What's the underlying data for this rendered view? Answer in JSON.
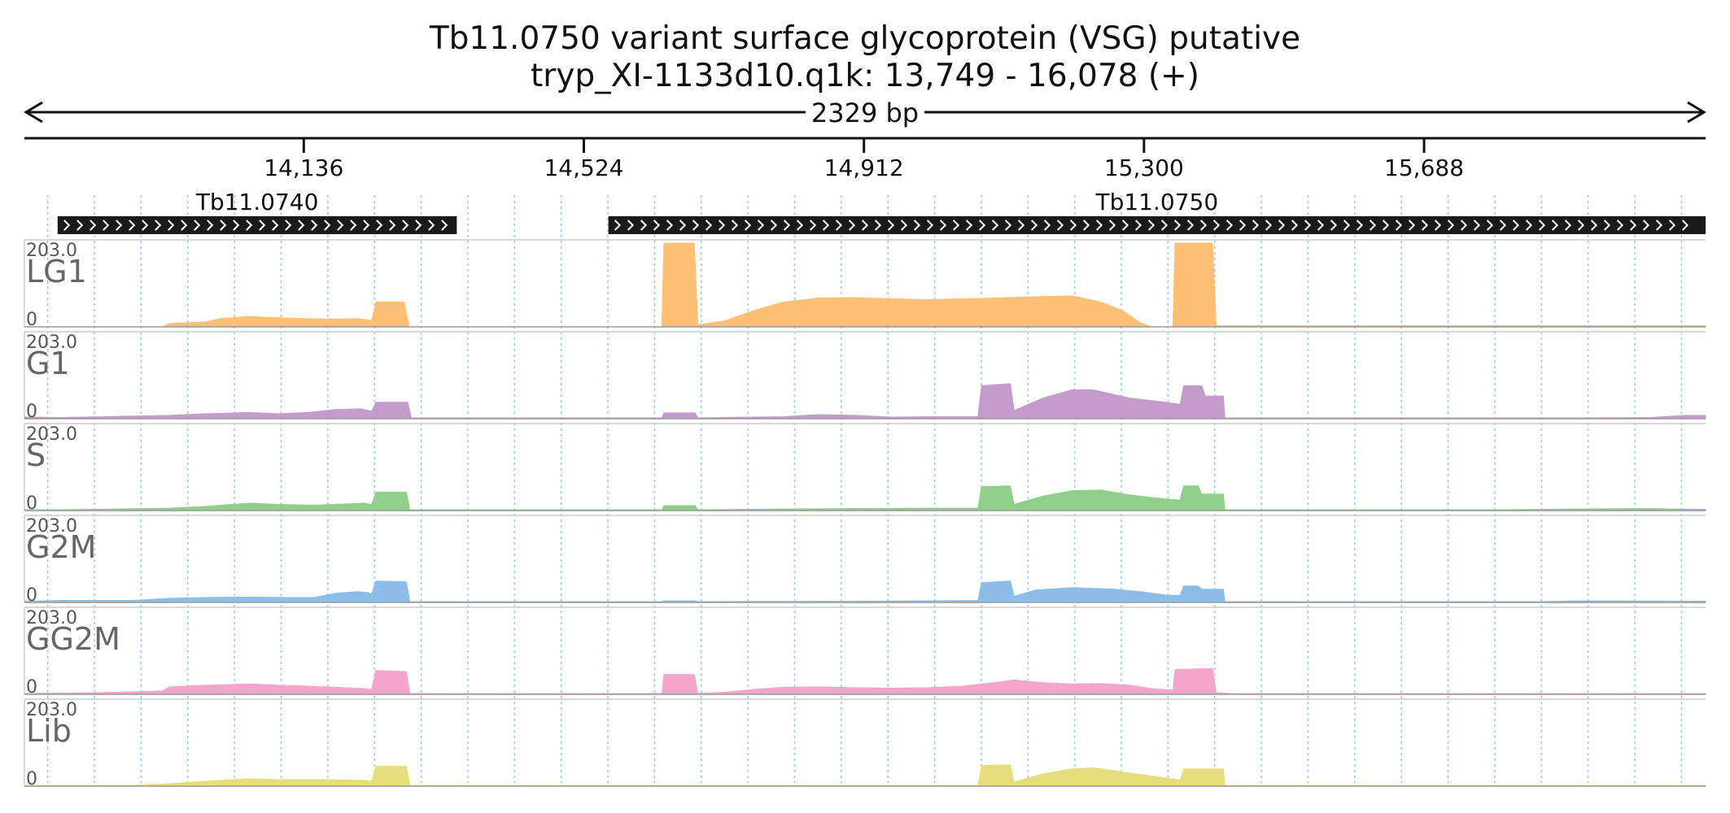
{
  "title": {
    "line1": "Tb11.0750  variant surface glycoprotein (VSG)  putative",
    "line2": "tryp_XI-1133d10.q1k: 13,749 - 16,078 (+)"
  },
  "span_label": "2329 bp",
  "chart_data": {
    "type": "area",
    "x_range": [
      13749,
      16078
    ],
    "x_ticks": [
      "14,136",
      "14,524",
      "14,912",
      "15,300",
      "15,688"
    ],
    "x_tick_values": [
      14136,
      14524,
      14912,
      15300,
      15688
    ],
    "grid": true,
    "genes": [
      {
        "name": "Tb11.0740",
        "start": 13795,
        "end": 14348,
        "strand": "+"
      },
      {
        "name": "Tb11.0750",
        "start": 14558,
        "end": 16078,
        "strand": "+"
      }
    ],
    "tracks": [
      {
        "name": "LG1",
        "ymax_label": "203.0",
        "ymin_label": "0",
        "ymax": 203,
        "color": "#fcbf74",
        "points": [
          [
            13749,
            0
          ],
          [
            13940,
            0
          ],
          [
            13950,
            8
          ],
          [
            14000,
            12
          ],
          [
            14020,
            20
          ],
          [
            14060,
            25
          ],
          [
            14100,
            22
          ],
          [
            14140,
            20
          ],
          [
            14180,
            19
          ],
          [
            14210,
            20
          ],
          [
            14230,
            16
          ],
          [
            14236,
            60
          ],
          [
            14275,
            60
          ],
          [
            14282,
            0
          ],
          [
            14632,
            0
          ],
          [
            14635,
            203
          ],
          [
            14677,
            203
          ],
          [
            14682,
            5
          ],
          [
            14720,
            15
          ],
          [
            14760,
            40
          ],
          [
            14800,
            60
          ],
          [
            14850,
            70
          ],
          [
            14900,
            71
          ],
          [
            14950,
            68
          ],
          [
            15000,
            66
          ],
          [
            15050,
            68
          ],
          [
            15100,
            70
          ],
          [
            15150,
            73
          ],
          [
            15200,
            75
          ],
          [
            15215,
            70
          ],
          [
            15240,
            60
          ],
          [
            15270,
            40
          ],
          [
            15295,
            10
          ],
          [
            15310,
            0
          ],
          [
            15340,
            0
          ],
          [
            15343,
            203
          ],
          [
            15395,
            203
          ],
          [
            15400,
            3
          ],
          [
            16078,
            3
          ]
        ]
      },
      {
        "name": "G1",
        "ymax_label": "203.0",
        "ymin_label": "0",
        "ymax": 203,
        "color": "#c49ccc",
        "points": [
          [
            13749,
            4
          ],
          [
            13800,
            3
          ],
          [
            13950,
            8
          ],
          [
            14000,
            12
          ],
          [
            14060,
            15
          ],
          [
            14100,
            12
          ],
          [
            14140,
            15
          ],
          [
            14180,
            22
          ],
          [
            14215,
            24
          ],
          [
            14230,
            18
          ],
          [
            14236,
            40
          ],
          [
            14280,
            40
          ],
          [
            14285,
            2
          ],
          [
            14632,
            2
          ],
          [
            14635,
            14
          ],
          [
            14678,
            14
          ],
          [
            14682,
            2
          ],
          [
            14800,
            5
          ],
          [
            14850,
            10
          ],
          [
            14900,
            8
          ],
          [
            14950,
            4
          ],
          [
            15000,
            5
          ],
          [
            15070,
            5
          ],
          [
            15075,
            80
          ],
          [
            15115,
            85
          ],
          [
            15120,
            20
          ],
          [
            15160,
            50
          ],
          [
            15200,
            70
          ],
          [
            15230,
            70
          ],
          [
            15280,
            50
          ],
          [
            15330,
            40
          ],
          [
            15350,
            35
          ],
          [
            15355,
            80
          ],
          [
            15380,
            80
          ],
          [
            15385,
            55
          ],
          [
            15410,
            55
          ],
          [
            15412,
            2
          ],
          [
            15900,
            2
          ],
          [
            16000,
            3
          ],
          [
            16050,
            8
          ],
          [
            16078,
            8
          ]
        ]
      },
      {
        "name": "S",
        "ymax_label": "203.0",
        "ymin_label": "0",
        "ymax": 203,
        "color": "#8fcf8a",
        "points": [
          [
            13749,
            2
          ],
          [
            13800,
            2
          ],
          [
            13950,
            6
          ],
          [
            14000,
            10
          ],
          [
            14060,
            18
          ],
          [
            14100,
            15
          ],
          [
            14150,
            13
          ],
          [
            14220,
            18
          ],
          [
            14230,
            15
          ],
          [
            14236,
            45
          ],
          [
            14278,
            45
          ],
          [
            14283,
            2
          ],
          [
            14632,
            2
          ],
          [
            14635,
            12
          ],
          [
            14678,
            12
          ],
          [
            14682,
            2
          ],
          [
            14800,
            4
          ],
          [
            14900,
            5
          ],
          [
            15000,
            6
          ],
          [
            15070,
            6
          ],
          [
            15075,
            58
          ],
          [
            15115,
            60
          ],
          [
            15120,
            15
          ],
          [
            15160,
            35
          ],
          [
            15200,
            48
          ],
          [
            15240,
            50
          ],
          [
            15280,
            38
          ],
          [
            15330,
            28
          ],
          [
            15350,
            25
          ],
          [
            15355,
            60
          ],
          [
            15375,
            60
          ],
          [
            15380,
            40
          ],
          [
            15410,
            40
          ],
          [
            15412,
            2
          ],
          [
            15800,
            2
          ],
          [
            15900,
            4
          ],
          [
            16000,
            5
          ],
          [
            16078,
            3
          ]
        ]
      },
      {
        "name": "G2M",
        "ymax_label": "203.0",
        "ymin_label": "0",
        "ymax": 203,
        "color": "#8cbde6",
        "points": [
          [
            13749,
            3
          ],
          [
            13800,
            5
          ],
          [
            13900,
            5
          ],
          [
            13950,
            10
          ],
          [
            14000,
            12
          ],
          [
            14060,
            13
          ],
          [
            14110,
            12
          ],
          [
            14150,
            12
          ],
          [
            14180,
            22
          ],
          [
            14210,
            26
          ],
          [
            14225,
            24
          ],
          [
            14230,
            20
          ],
          [
            14236,
            52
          ],
          [
            14278,
            50
          ],
          [
            14283,
            2
          ],
          [
            14632,
            2
          ],
          [
            14635,
            4
          ],
          [
            14678,
            4
          ],
          [
            14682,
            2
          ],
          [
            14900,
            3
          ],
          [
            15000,
            4
          ],
          [
            15070,
            5
          ],
          [
            15075,
            48
          ],
          [
            15115,
            52
          ],
          [
            15120,
            15
          ],
          [
            15150,
            30
          ],
          [
            15200,
            36
          ],
          [
            15260,
            32
          ],
          [
            15300,
            25
          ],
          [
            15330,
            18
          ],
          [
            15350,
            17
          ],
          [
            15355,
            40
          ],
          [
            15375,
            40
          ],
          [
            15380,
            32
          ],
          [
            15410,
            32
          ],
          [
            15412,
            2
          ],
          [
            15850,
            2
          ],
          [
            15900,
            4
          ],
          [
            16078,
            3
          ]
        ]
      },
      {
        "name": "GG2M",
        "ymax_label": "203.0",
        "ymin_label": "0",
        "ymax": 203,
        "color": "#f4a5cb",
        "points": [
          [
            13749,
            2
          ],
          [
            13850,
            4
          ],
          [
            13940,
            8
          ],
          [
            13950,
            18
          ],
          [
            14000,
            22
          ],
          [
            14060,
            25
          ],
          [
            14100,
            22
          ],
          [
            14140,
            20
          ],
          [
            14180,
            17
          ],
          [
            14220,
            14
          ],
          [
            14230,
            12
          ],
          [
            14236,
            58
          ],
          [
            14278,
            55
          ],
          [
            14283,
            2
          ],
          [
            14632,
            2
          ],
          [
            14635,
            48
          ],
          [
            14677,
            48
          ],
          [
            14682,
            2
          ],
          [
            14720,
            5
          ],
          [
            14760,
            12
          ],
          [
            14800,
            17
          ],
          [
            14850,
            18
          ],
          [
            14900,
            16
          ],
          [
            14950,
            15
          ],
          [
            15000,
            16
          ],
          [
            15050,
            20
          ],
          [
            15100,
            30
          ],
          [
            15120,
            35
          ],
          [
            15160,
            28
          ],
          [
            15200,
            25
          ],
          [
            15240,
            26
          ],
          [
            15280,
            22
          ],
          [
            15310,
            14
          ],
          [
            15340,
            10
          ],
          [
            15343,
            60
          ],
          [
            15380,
            62
          ],
          [
            15395,
            62
          ],
          [
            15400,
            4
          ],
          [
            15420,
            2
          ],
          [
            16078,
            2
          ]
        ]
      },
      {
        "name": "Lib",
        "ymax_label": "203.0",
        "ymin_label": "0",
        "ymax": 203,
        "color": "#e6dd7f",
        "points": [
          [
            13749,
            2
          ],
          [
            13900,
            2
          ],
          [
            13950,
            6
          ],
          [
            14000,
            12
          ],
          [
            14060,
            18
          ],
          [
            14100,
            16
          ],
          [
            14160,
            16
          ],
          [
            14220,
            14
          ],
          [
            14230,
            12
          ],
          [
            14236,
            48
          ],
          [
            14278,
            48
          ],
          [
            14283,
            2
          ],
          [
            14600,
            2
          ],
          [
            15070,
            2
          ],
          [
            15075,
            50
          ],
          [
            15115,
            52
          ],
          [
            15120,
            10
          ],
          [
            15160,
            30
          ],
          [
            15200,
            42
          ],
          [
            15230,
            45
          ],
          [
            15280,
            32
          ],
          [
            15330,
            20
          ],
          [
            15350,
            15
          ],
          [
            15355,
            42
          ],
          [
            15410,
            42
          ],
          [
            15412,
            2
          ],
          [
            15900,
            2
          ],
          [
            16078,
            2
          ]
        ]
      }
    ]
  }
}
